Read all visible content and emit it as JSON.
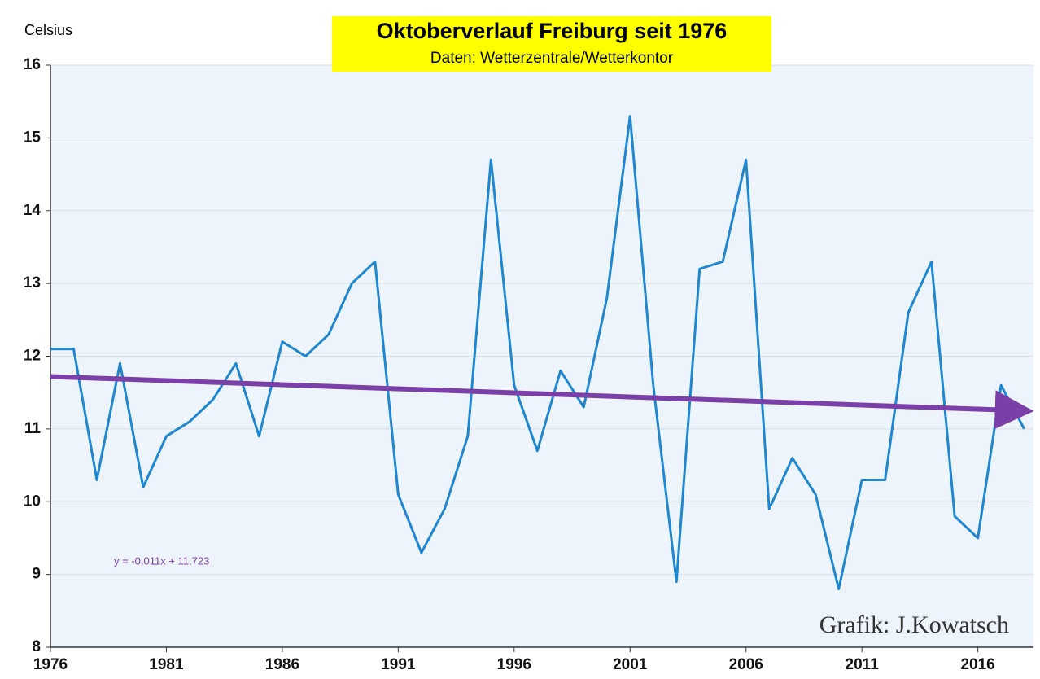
{
  "chart_data": {
    "type": "line",
    "title": "Oktoberverlauf Freiburg seit 1976",
    "subtitle": "Daten: Wetterzentrale/Wetterkontor",
    "y_label": "Celsius",
    "annotation": "Grafik: J.Kowatsch",
    "equation": "y = -0,011x + 11,723",
    "x": [
      1976,
      1977,
      1978,
      1979,
      1980,
      1981,
      1982,
      1983,
      1984,
      1985,
      1986,
      1987,
      1988,
      1989,
      1990,
      1991,
      1992,
      1993,
      1994,
      1995,
      1996,
      1997,
      1998,
      1999,
      2000,
      2001,
      2002,
      2003,
      2004,
      2005,
      2006,
      2007,
      2008,
      2009,
      2010,
      2011,
      2012,
      2013,
      2014,
      2015,
      2016,
      2017,
      2018
    ],
    "series": [
      {
        "color": "#1f86d0",
        "values": [
          12.1,
          12.1,
          10.3,
          11.9,
          10.2,
          10.9,
          11.1,
          11.4,
          11.9,
          10.9,
          12.2,
          12.0,
          12.3,
          13.0,
          13.3,
          10.1,
          9.3,
          9.9,
          10.9,
          14.7,
          11.6,
          10.7,
          11.8,
          11.3,
          12.8,
          15.3,
          11.6,
          8.9,
          13.2,
          13.3,
          14.7,
          9.9,
          10.6,
          10.1,
          8.8,
          10.3,
          10.3,
          12.6,
          13.3,
          9.8,
          9.5,
          11.6,
          11.0
        ]
      }
    ],
    "trendline": {
      "color": "#7b3fa8",
      "x": [
        1976,
        2018
      ],
      "values": [
        11.72,
        11.25
      ]
    },
    "xlim": [
      1976,
      2018.4
    ],
    "xticks": [
      1976,
      1981,
      1986,
      1991,
      1996,
      2001,
      2006,
      2011,
      2016
    ],
    "ylim": [
      8,
      16
    ],
    "yticks": [
      8,
      9,
      10,
      11,
      12,
      13,
      14,
      15,
      16
    ],
    "grid": true
  }
}
